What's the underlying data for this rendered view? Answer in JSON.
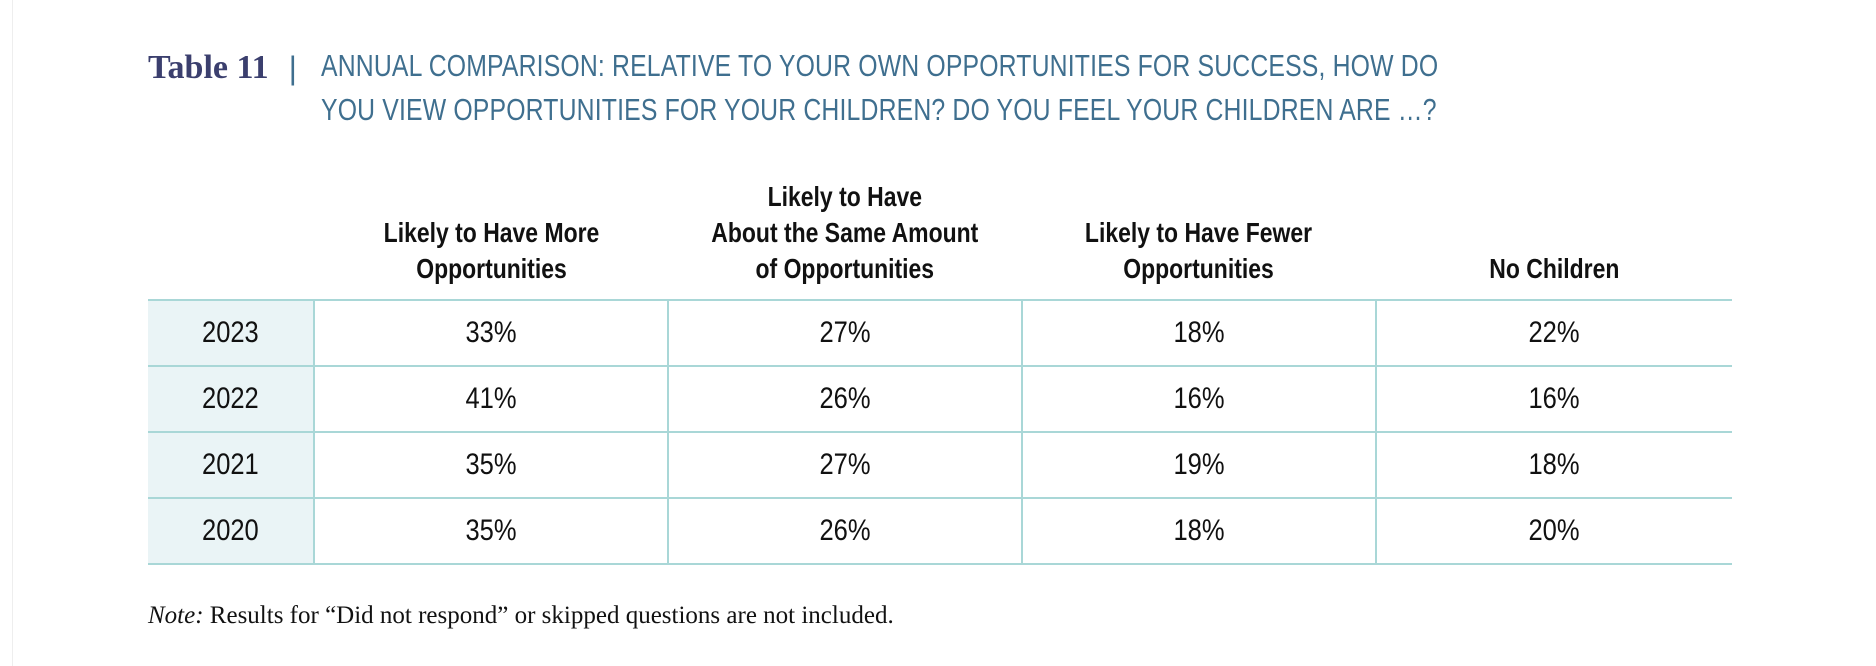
{
  "title": {
    "table_label": "Table 11",
    "separator": "|",
    "text": "ANNUAL COMPARISON: RELATIVE TO YOUR OWN OPPORTUNITIES FOR SUCCESS, HOW DO YOU VIEW OPPORTUNITIES FOR YOUR CHILDREN? DO YOU FEEL YOUR CHILDREN ARE …?"
  },
  "colors": {
    "title_label": "#3b3f6e",
    "title_text": "#3f6f8f",
    "rule": "#a9d7d7",
    "year_fill": "#eaf4f6"
  },
  "chart_data": {
    "type": "table",
    "columns": [
      "",
      "Likely to Have More Opportunities",
      "Likely to Have About the Same Amount of Opportunities",
      "Likely to Have Fewer Opportunities",
      "No Children"
    ],
    "header_lines": [
      [],
      [
        "Likely to Have More",
        "Opportunities"
      ],
      [
        "Likely to Have",
        "About the Same Amount",
        "of Opportunities"
      ],
      [
        "Likely to Have Fewer",
        "Opportunities"
      ],
      [
        "No Children"
      ]
    ],
    "rows": [
      [
        "2023",
        "33%",
        "27%",
        "18%",
        "22%"
      ],
      [
        "2022",
        "41%",
        "26%",
        "16%",
        "16%"
      ],
      [
        "2021",
        "35%",
        "27%",
        "19%",
        "18%"
      ],
      [
        "2020",
        "35%",
        "26%",
        "18%",
        "20%"
      ]
    ]
  },
  "note": {
    "label": "Note:",
    "text": "Results for “Did not respond” or skipped questions are not included."
  }
}
